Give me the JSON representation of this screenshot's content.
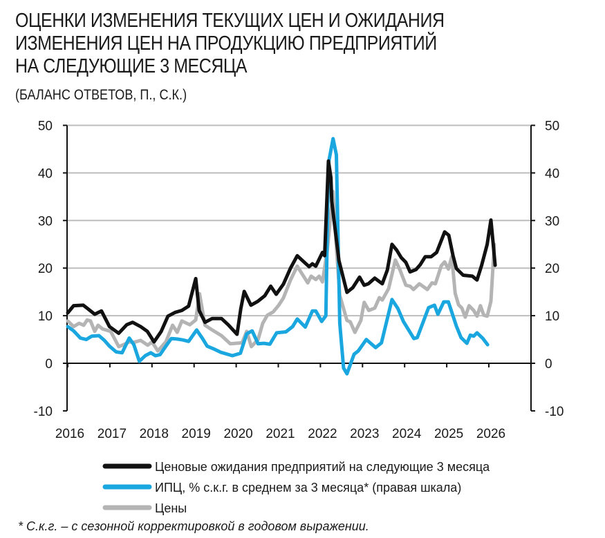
{
  "chart_data": {
    "type": "line",
    "title": "ОЦЕНКИ ИЗМЕНЕНИЯ ТЕКУЩИХ ЦЕН И ОЖИДАНИЯ ИЗМЕНЕНИЯ ЦЕН НА ПРОДУКЦИЮ ПРЕДПРИЯТИЙ НА СЛЕДУЮЩИЕ 3 МЕСЯЦА",
    "title_lines": [
      "ОЦЕНКИ ИЗМЕНЕНИЯ ТЕКУЩИХ ЦЕН И ОЖИДАНИЯ",
      "ИЗМЕНЕНИЯ ЦЕН НА ПРОДУКЦИЮ ПРЕДПРИЯТИЙ",
      "НА СЛЕДУЮЩИЕ 3 МЕСЯЦА"
    ],
    "subtitle": "(БАЛАНС ОТВЕТОВ, П., С.К.)",
    "footnote": "* С.к.г. – с сезонной корректировкой в годовом выражении.",
    "xlim": [
      2016,
      2027
    ],
    "x_ticks": [
      "2016",
      "2017",
      "2018",
      "2019",
      "2020",
      "2021",
      "2022",
      "2023",
      "2024",
      "2025",
      "2026"
    ],
    "ylim_left": [
      -10,
      50
    ],
    "ylim_right": [
      -10,
      50
    ],
    "y_ticks_left": [
      "50",
      "40",
      "30",
      "20",
      "10",
      "0",
      "-10"
    ],
    "y_ticks_right": [
      "50",
      "40",
      "30",
      "20",
      "10",
      "0",
      "-10"
    ],
    "grid": "horizontal",
    "legend_position": "bottom",
    "series": [
      {
        "name": "Ценовые ожидания предприятий на следующие 3 месяца",
        "color": "#111111",
        "axis": "left",
        "points": [
          [
            2016.0,
            10.6
          ],
          [
            2016.14,
            12.1
          ],
          [
            2016.37,
            12.2
          ],
          [
            2016.64,
            10.3
          ],
          [
            2016.8,
            11.0
          ],
          [
            2016.99,
            7.7
          ],
          [
            2017.21,
            6.3
          ],
          [
            2017.4,
            8.1
          ],
          [
            2017.54,
            8.6
          ],
          [
            2017.73,
            7.7
          ],
          [
            2017.89,
            6.7
          ],
          [
            2018.05,
            4.5
          ],
          [
            2018.22,
            6.7
          ],
          [
            2018.38,
            9.9
          ],
          [
            2018.55,
            10.7
          ],
          [
            2018.71,
            11.1
          ],
          [
            2018.87,
            12.0
          ],
          [
            2019.04,
            17.8
          ],
          [
            2019.12,
            11.1
          ],
          [
            2019.26,
            8.6
          ],
          [
            2019.43,
            9.4
          ],
          [
            2019.65,
            9.4
          ],
          [
            2019.81,
            8.1
          ],
          [
            2020.02,
            6.1
          ],
          [
            2020.11,
            11.5
          ],
          [
            2020.19,
            15.1
          ],
          [
            2020.35,
            12.2
          ],
          [
            2020.51,
            13.0
          ],
          [
            2020.68,
            14.2
          ],
          [
            2020.82,
            16.2
          ],
          [
            2020.95,
            14.5
          ],
          [
            2021.12,
            16.6
          ],
          [
            2021.29,
            20.0
          ],
          [
            2021.45,
            22.6
          ],
          [
            2021.73,
            20.3
          ],
          [
            2021.81,
            20.9
          ],
          [
            2021.89,
            20.4
          ],
          [
            2022.05,
            23.3
          ],
          [
            2022.1,
            22.6
          ],
          [
            2022.19,
            42.5
          ],
          [
            2022.25,
            39.0
          ],
          [
            2022.27,
            34.0
          ],
          [
            2022.44,
            21.6
          ],
          [
            2022.63,
            14.9
          ],
          [
            2022.77,
            15.9
          ],
          [
            2022.93,
            18.1
          ],
          [
            2023.04,
            16.4
          ],
          [
            2023.14,
            16.7
          ],
          [
            2023.29,
            17.9
          ],
          [
            2023.47,
            16.7
          ],
          [
            2023.59,
            19.6
          ],
          [
            2023.7,
            25.0
          ],
          [
            2023.81,
            23.8
          ],
          [
            2023.92,
            22.2
          ],
          [
            2024.03,
            21.2
          ],
          [
            2024.13,
            19.2
          ],
          [
            2024.27,
            19.7
          ],
          [
            2024.37,
            20.7
          ],
          [
            2024.49,
            22.4
          ],
          [
            2024.63,
            22.4
          ],
          [
            2024.76,
            23.3
          ],
          [
            2024.95,
            27.6
          ],
          [
            2025.05,
            26.9
          ],
          [
            2025.15,
            22.6
          ],
          [
            2025.23,
            19.9
          ],
          [
            2025.39,
            18.5
          ],
          [
            2025.61,
            18.3
          ],
          [
            2025.72,
            17.5
          ],
          [
            2025.83,
            20.6
          ],
          [
            2025.96,
            25.0
          ],
          [
            2026.05,
            30.1
          ],
          [
            2026.1,
            25.4
          ],
          [
            2026.15,
            20.6
          ]
        ]
      },
      {
        "name": "ИПЦ, % с.к.г. в среднем за 3 месяца* (правая шкала)",
        "color": "#1aa7e0",
        "axis": "right",
        "points": [
          [
            2016.0,
            7.7
          ],
          [
            2016.14,
            6.8
          ],
          [
            2016.3,
            5.3
          ],
          [
            2016.44,
            5.0
          ],
          [
            2016.57,
            5.7
          ],
          [
            2016.74,
            5.8
          ],
          [
            2016.87,
            4.8
          ],
          [
            2016.99,
            3.6
          ],
          [
            2017.15,
            2.4
          ],
          [
            2017.29,
            2.2
          ],
          [
            2017.46,
            5.3
          ],
          [
            2017.57,
            3.9
          ],
          [
            2017.7,
            0.4
          ],
          [
            2017.84,
            1.6
          ],
          [
            2017.97,
            2.2
          ],
          [
            2018.08,
            1.6
          ],
          [
            2018.19,
            1.8
          ],
          [
            2018.33,
            3.6
          ],
          [
            2018.46,
            5.2
          ],
          [
            2018.6,
            5.1
          ],
          [
            2018.73,
            4.9
          ],
          [
            2018.87,
            4.6
          ],
          [
            2019.06,
            7.0
          ],
          [
            2019.2,
            5.2
          ],
          [
            2019.31,
            3.6
          ],
          [
            2019.47,
            3.0
          ],
          [
            2019.64,
            2.3
          ],
          [
            2019.91,
            1.6
          ],
          [
            2020.1,
            2.1
          ],
          [
            2020.25,
            6.2
          ],
          [
            2020.38,
            6.8
          ],
          [
            2020.52,
            4.1
          ],
          [
            2020.66,
            4.2
          ],
          [
            2020.8,
            4.0
          ],
          [
            2020.96,
            6.4
          ],
          [
            2021.18,
            6.6
          ],
          [
            2021.34,
            7.7
          ],
          [
            2021.45,
            9.3
          ],
          [
            2021.64,
            7.6
          ],
          [
            2021.81,
            11.0
          ],
          [
            2021.89,
            11.0
          ],
          [
            2022.03,
            8.8
          ],
          [
            2022.13,
            10.0
          ],
          [
            2022.19,
            42.0
          ],
          [
            2022.3,
            47.2
          ],
          [
            2022.38,
            43.8
          ],
          [
            2022.46,
            8.4
          ],
          [
            2022.55,
            -1.0
          ],
          [
            2022.63,
            -2.2
          ],
          [
            2022.8,
            1.9
          ],
          [
            2022.9,
            2.6
          ],
          [
            2023.09,
            5.0
          ],
          [
            2023.31,
            3.3
          ],
          [
            2023.45,
            4.3
          ],
          [
            2023.7,
            13.4
          ],
          [
            2023.84,
            11.5
          ],
          [
            2023.97,
            8.8
          ],
          [
            2024.22,
            5.2
          ],
          [
            2024.3,
            5.4
          ],
          [
            2024.57,
            11.7
          ],
          [
            2024.71,
            12.2
          ],
          [
            2024.79,
            10.3
          ],
          [
            2024.93,
            12.9
          ],
          [
            2025.04,
            12.9
          ],
          [
            2025.23,
            7.8
          ],
          [
            2025.34,
            5.4
          ],
          [
            2025.48,
            4.2
          ],
          [
            2025.56,
            5.9
          ],
          [
            2025.64,
            5.7
          ],
          [
            2025.72,
            6.4
          ],
          [
            2025.86,
            5.2
          ],
          [
            2025.97,
            3.9
          ]
        ]
      },
      {
        "name": "Цены",
        "color": "#b4b4b4",
        "axis": "left",
        "points": [
          [
            2016.0,
            8.9
          ],
          [
            2016.14,
            7.7
          ],
          [
            2016.27,
            8.4
          ],
          [
            2016.38,
            8.0
          ],
          [
            2016.46,
            9.1
          ],
          [
            2016.54,
            8.9
          ],
          [
            2016.64,
            6.7
          ],
          [
            2016.72,
            8.0
          ],
          [
            2016.83,
            7.2
          ],
          [
            2017.02,
            6.7
          ],
          [
            2017.21,
            3.5
          ],
          [
            2017.35,
            4.0
          ],
          [
            2017.46,
            4.5
          ],
          [
            2017.57,
            4.4
          ],
          [
            2017.73,
            4.8
          ],
          [
            2017.9,
            3.8
          ],
          [
            2018.0,
            4.5
          ],
          [
            2018.14,
            2.6
          ],
          [
            2018.33,
            4.5
          ],
          [
            2018.49,
            8.0
          ],
          [
            2018.6,
            6.5
          ],
          [
            2018.71,
            8.9
          ],
          [
            2018.9,
            8.1
          ],
          [
            2019.04,
            9.1
          ],
          [
            2019.13,
            14.6
          ],
          [
            2019.26,
            8.0
          ],
          [
            2019.43,
            7.0
          ],
          [
            2019.65,
            5.8
          ],
          [
            2019.86,
            4.1
          ],
          [
            2020.14,
            4.3
          ],
          [
            2020.25,
            6.7
          ],
          [
            2020.36,
            3.5
          ],
          [
            2020.52,
            5.0
          ],
          [
            2020.63,
            8.4
          ],
          [
            2020.74,
            10.1
          ],
          [
            2020.88,
            10.8
          ],
          [
            2021.01,
            12.2
          ],
          [
            2021.12,
            13.7
          ],
          [
            2021.29,
            17.5
          ],
          [
            2021.45,
            20.4
          ],
          [
            2021.7,
            16.9
          ],
          [
            2021.78,
            18.3
          ],
          [
            2021.89,
            17.6
          ],
          [
            2021.97,
            18.3
          ],
          [
            2022.05,
            17.1
          ],
          [
            2022.16,
            23.5
          ],
          [
            2022.3,
            36.1
          ],
          [
            2022.38,
            24.4
          ],
          [
            2022.46,
            14.3
          ],
          [
            2022.63,
            9.0
          ],
          [
            2022.71,
            8.7
          ],
          [
            2022.82,
            6.5
          ],
          [
            2022.96,
            9.0
          ],
          [
            2023.04,
            12.8
          ],
          [
            2023.15,
            11.1
          ],
          [
            2023.29,
            11.6
          ],
          [
            2023.4,
            13.8
          ],
          [
            2023.47,
            13.3
          ],
          [
            2023.62,
            15.7
          ],
          [
            2023.78,
            21.7
          ],
          [
            2023.89,
            19.6
          ],
          [
            2024.03,
            16.4
          ],
          [
            2024.13,
            16.2
          ],
          [
            2024.21,
            15.5
          ],
          [
            2024.35,
            16.7
          ],
          [
            2024.54,
            15.5
          ],
          [
            2024.65,
            16.9
          ],
          [
            2024.73,
            16.7
          ],
          [
            2024.87,
            20.5
          ],
          [
            2024.95,
            21.3
          ],
          [
            2025.04,
            19.8
          ],
          [
            2025.12,
            22.4
          ],
          [
            2025.2,
            14.7
          ],
          [
            2025.28,
            12.3
          ],
          [
            2025.36,
            11.6
          ],
          [
            2025.44,
            9.7
          ],
          [
            2025.53,
            12.1
          ],
          [
            2025.64,
            11.1
          ],
          [
            2025.72,
            9.9
          ],
          [
            2025.8,
            12.1
          ],
          [
            2025.88,
            10.1
          ],
          [
            2025.96,
            9.9
          ],
          [
            2026.05,
            13.0
          ],
          [
            2026.13,
            25.0
          ]
        ]
      }
    ]
  }
}
